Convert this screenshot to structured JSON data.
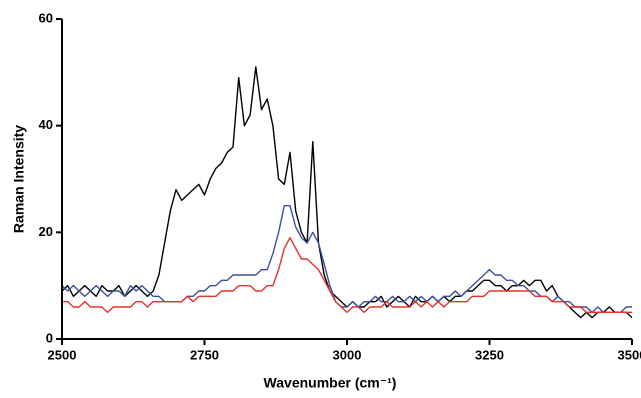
{
  "chart_data": {
    "type": "line",
    "xlabel": "Wavenumber (cm⁻¹)",
    "ylabel": "Raman Intensity",
    "xlim": [
      2500,
      3500
    ],
    "xticks": [
      2500,
      2750,
      3000,
      3250,
      3500
    ],
    "ylim": [
      0,
      60
    ],
    "yticks": [
      0,
      20,
      40,
      60
    ],
    "x": [
      2500,
      2510,
      2520,
      2530,
      2540,
      2550,
      2560,
      2570,
      2580,
      2590,
      2600,
      2610,
      2620,
      2630,
      2640,
      2650,
      2660,
      2670,
      2680,
      2690,
      2700,
      2710,
      2720,
      2730,
      2740,
      2750,
      2760,
      2770,
      2780,
      2790,
      2800,
      2810,
      2820,
      2830,
      2840,
      2850,
      2860,
      2870,
      2880,
      2890,
      2900,
      2910,
      2920,
      2930,
      2940,
      2950,
      2960,
      2970,
      2980,
      2990,
      3000,
      3010,
      3020,
      3030,
      3040,
      3050,
      3060,
      3070,
      3080,
      3090,
      3100,
      3110,
      3120,
      3130,
      3140,
      3150,
      3160,
      3170,
      3180,
      3190,
      3200,
      3210,
      3220,
      3230,
      3240,
      3250,
      3260,
      3270,
      3280,
      3290,
      3300,
      3310,
      3320,
      3330,
      3340,
      3350,
      3360,
      3370,
      3380,
      3390,
      3400,
      3410,
      3420,
      3430,
      3440,
      3450,
      3460,
      3470,
      3480,
      3490,
      3500
    ],
    "series": [
      {
        "color": "#000000",
        "values": [
          9,
          10,
          8,
          9,
          10,
          9,
          8,
          10,
          9,
          9,
          10,
          8,
          9,
          10,
          9,
          8,
          9,
          12,
          18,
          24,
          28,
          26,
          27,
          28,
          29,
          27,
          30,
          32,
          33,
          35,
          36,
          49,
          40,
          42,
          51,
          43,
          45,
          40,
          30,
          29,
          35,
          24,
          20,
          18,
          37,
          18,
          12,
          9,
          8,
          7,
          6,
          7,
          6,
          6,
          7,
          7,
          8,
          6,
          7,
          8,
          7,
          6,
          8,
          7,
          7,
          8,
          7,
          8,
          7,
          8,
          8,
          9,
          9,
          10,
          11,
          11,
          10,
          10,
          9,
          10,
          10,
          11,
          10,
          11,
          11,
          9,
          10,
          8,
          7,
          6,
          5,
          4,
          5,
          4,
          5,
          5,
          6,
          5,
          5,
          5,
          4
        ]
      },
      {
        "color": "#3a4fa0",
        "values": [
          10,
          9,
          10,
          9,
          8,
          9,
          10,
          9,
          8,
          9,
          9,
          8,
          10,
          9,
          10,
          9,
          8,
          8,
          7,
          7,
          7,
          7,
          8,
          8,
          9,
          9,
          10,
          10,
          11,
          11,
          12,
          12,
          12,
          12,
          12,
          13,
          13,
          16,
          20,
          25,
          25,
          21,
          19,
          18,
          20,
          18,
          14,
          10,
          7,
          6,
          6,
          7,
          6,
          7,
          7,
          8,
          7,
          7,
          8,
          7,
          7,
          8,
          7,
          8,
          7,
          8,
          7,
          8,
          8,
          9,
          8,
          9,
          10,
          11,
          12,
          13,
          12,
          12,
          11,
          11,
          10,
          10,
          9,
          9,
          8,
          8,
          7,
          8,
          7,
          7,
          6,
          6,
          6,
          5,
          6,
          5,
          5,
          5,
          5,
          6,
          6
        ]
      },
      {
        "color": "#e8302a",
        "values": [
          7,
          7,
          6,
          6,
          7,
          6,
          6,
          6,
          5,
          6,
          6,
          6,
          6,
          7,
          7,
          6,
          7,
          7,
          7,
          7,
          7,
          7,
          8,
          7,
          8,
          8,
          8,
          8,
          9,
          9,
          9,
          10,
          10,
          10,
          9,
          9,
          10,
          10,
          13,
          17,
          19,
          17,
          15,
          15,
          14,
          13,
          11,
          9,
          7,
          6,
          5,
          6,
          6,
          5,
          6,
          6,
          6,
          7,
          6,
          6,
          6,
          6,
          7,
          6,
          7,
          6,
          7,
          6,
          7,
          7,
          7,
          7,
          8,
          8,
          8,
          9,
          9,
          9,
          9,
          9,
          9,
          9,
          9,
          8,
          8,
          8,
          7,
          7,
          7,
          6,
          6,
          6,
          5,
          5,
          5,
          5,
          5,
          5,
          5,
          5,
          5
        ]
      }
    ]
  }
}
